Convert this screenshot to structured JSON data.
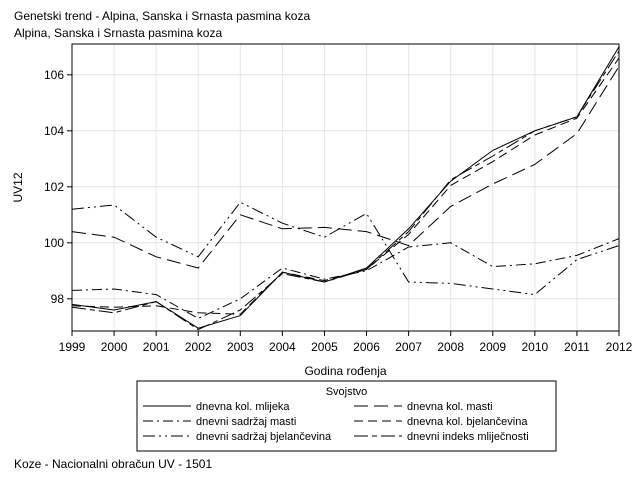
{
  "chart_data": {
    "type": "line",
    "title": "Genetski trend - Alpina, Sanska i Srnasta pasmina koza",
    "subtitle": "Alpina, Sanska i Srnasta pasmina koza",
    "xlabel": "Godina rođenja",
    "ylabel": "UV12",
    "x": [
      "1999",
      "2000",
      "2001",
      "2002",
      "2003",
      "2004",
      "2005",
      "2006",
      "2007",
      "2008",
      "2009",
      "2010",
      "2011",
      "2012"
    ],
    "xlim": [
      1999,
      2012
    ],
    "ylim": [
      96.85,
      107.1
    ],
    "yticks": [
      98,
      100,
      102,
      104,
      106
    ],
    "grid": true,
    "legend": {
      "title": "Svojstvo",
      "placement": "bottom"
    },
    "series": [
      {
        "name": "dnevna kol. mlijeka",
        "dash": "solid",
        "values": [
          97.8,
          97.6,
          97.9,
          96.95,
          97.4,
          98.95,
          98.6,
          99.1,
          100.5,
          102.2,
          103.3,
          104.0,
          104.5,
          107.0
        ]
      },
      {
        "name": "dnevna kol. masti",
        "dash": "longdash",
        "values": [
          100.4,
          100.2,
          99.5,
          99.1,
          101.0,
          100.5,
          100.55,
          100.4,
          99.9,
          101.3,
          102.1,
          102.8,
          103.9,
          106.3
        ]
      },
      {
        "name": "dnevni sadržaj masti",
        "dash": "dashdot",
        "values": [
          98.3,
          98.35,
          98.15,
          97.3,
          98.0,
          99.1,
          98.7,
          99.0,
          99.85,
          100.0,
          99.15,
          99.25,
          99.55,
          100.15
        ]
      },
      {
        "name": "dnevna kol. bjelančevina",
        "dash": "dash",
        "values": [
          97.75,
          97.7,
          97.75,
          97.5,
          97.45,
          98.95,
          98.65,
          99.05,
          100.3,
          102.05,
          102.9,
          103.85,
          104.45,
          106.6
        ]
      },
      {
        "name": "dnevni sadržaj bjelančevina",
        "dash": "longdashdot",
        "values": [
          101.2,
          101.35,
          100.2,
          99.5,
          101.45,
          100.7,
          100.2,
          101.05,
          98.6,
          98.55,
          98.35,
          98.15,
          99.4,
          99.9
        ]
      },
      {
        "name": "dnevni indeks mliječnosti",
        "dash": "mixed",
        "values": [
          97.7,
          97.5,
          97.9,
          96.9,
          97.6,
          98.9,
          98.6,
          99.05,
          100.4,
          102.25,
          103.1,
          104.0,
          104.5,
          106.85
        ]
      }
    ]
  },
  "footnote": "Koze - Nacionalni obračun UV - 1501"
}
